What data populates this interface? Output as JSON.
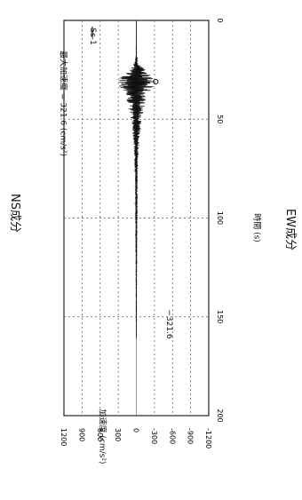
{
  "page": {
    "top_caption": "NS成分",
    "bottom_caption": "EW成分"
  },
  "chart_data": {
    "type": "line",
    "orientation": "rotated-90",
    "annotation_max": "最大加速度 = 321.6 (cm/s²)",
    "peak_label": "−321.6",
    "xlabel": "時間 (s)",
    "ylabel": "加速度 (cm/s²)",
    "xlim": [
      0,
      200
    ],
    "ylim": [
      -1200,
      1200
    ],
    "x_ticks": [
      "0",
      "50",
      "100",
      "150",
      "200"
    ],
    "y_ticks": [
      "1200",
      "900",
      "600",
      "300",
      "0",
      "-300",
      "-600",
      "-900",
      "-1200"
    ],
    "grid": true,
    "legend": {
      "position": "top-right",
      "entries": [
        "Ss-1"
      ]
    },
    "series": [
      {
        "name": "Ss-1",
        "peak": {
          "x": 31.0,
          "y": -321.6
        },
        "envelope": [
          {
            "t": 0,
            "a": 0
          },
          {
            "t": 18,
            "a": 6
          },
          {
            "t": 22,
            "a": 40
          },
          {
            "t": 25,
            "a": 150
          },
          {
            "t": 28,
            "a": 250
          },
          {
            "t": 31,
            "a": 321.6
          },
          {
            "t": 34,
            "a": 280
          },
          {
            "t": 37,
            "a": 200
          },
          {
            "t": 40,
            "a": 170
          },
          {
            "t": 45,
            "a": 130
          },
          {
            "t": 50,
            "a": 90
          },
          {
            "t": 60,
            "a": 55
          },
          {
            "t": 70,
            "a": 35
          },
          {
            "t": 80,
            "a": 24
          },
          {
            "t": 95,
            "a": 16
          },
          {
            "t": 110,
            "a": 10
          },
          {
            "t": 130,
            "a": 7
          },
          {
            "t": 150,
            "a": 5
          },
          {
            "t": 160,
            "a": 3
          },
          {
            "t": 161,
            "a": 0
          }
        ]
      }
    ]
  }
}
